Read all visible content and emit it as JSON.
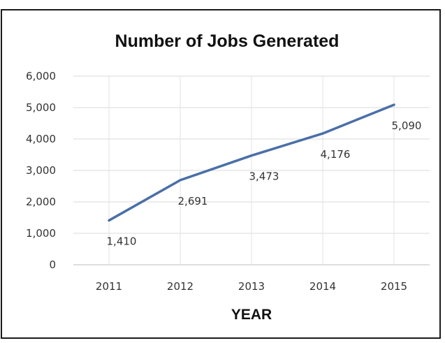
{
  "chart_data": {
    "type": "line",
    "title": "Number of Jobs Generated",
    "xlabel": "YEAR",
    "ylabel": "",
    "categories": [
      "2011",
      "2012",
      "2013",
      "2014",
      "2015"
    ],
    "series": [
      {
        "values": [
          1410,
          2691,
          3473,
          4176,
          5090
        ],
        "color": "#4a6fa8"
      }
    ],
    "data_labels": [
      "1,410",
      "2,691",
      "3,473",
      "4,176",
      "5,090"
    ],
    "yticks": [
      "0",
      "1,000",
      "2,000",
      "3,000",
      "4,000",
      "5,000",
      "6,000"
    ],
    "ylim": [
      0,
      6000
    ],
    "grid": true,
    "legend": "none"
  }
}
